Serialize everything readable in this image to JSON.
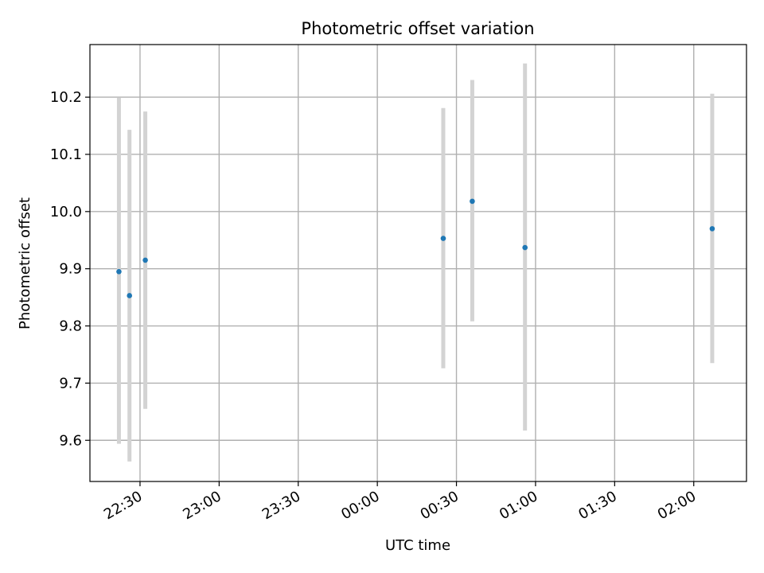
{
  "chart_data": {
    "type": "scatter",
    "title": "Photometric offset variation",
    "xlabel": "UTC time",
    "ylabel": "Photometric offset",
    "x_axis_type": "time",
    "xlim": [
      "22:11",
      "02:20"
    ],
    "ylim": [
      9.528,
      10.292
    ],
    "grid": true,
    "x_ticks": [
      "22:30",
      "23:00",
      "23:30",
      "00:00",
      "00:30",
      "01:00",
      "01:30",
      "02:00"
    ],
    "y_ticks": [
      9.6,
      9.7,
      9.8,
      9.9,
      10.0,
      10.1,
      10.2
    ],
    "y_tick_labels": [
      "9.6",
      "9.7",
      "9.8",
      "9.9",
      "10.0",
      "10.1",
      "10.2"
    ],
    "colors": {
      "points": "#1f77b4",
      "errorbars": "#d3d3d3",
      "grid": "#b0b0b0"
    },
    "points": [
      {
        "x": "22:22",
        "y": 9.895,
        "y_low": 9.594,
        "y_high": 10.199
      },
      {
        "x": "22:26",
        "y": 9.853,
        "y_low": 9.563,
        "y_high": 10.143
      },
      {
        "x": "22:32",
        "y": 9.915,
        "y_low": 9.655,
        "y_high": 10.175
      },
      {
        "x": "00:25",
        "y": 9.953,
        "y_low": 9.726,
        "y_high": 10.181
      },
      {
        "x": "00:36",
        "y": 10.018,
        "y_low": 9.808,
        "y_high": 10.23
      },
      {
        "x": "00:56",
        "y": 9.937,
        "y_low": 9.617,
        "y_high": 10.259
      },
      {
        "x": "02:07",
        "y": 9.97,
        "y_low": 9.735,
        "y_high": 10.206
      }
    ]
  }
}
